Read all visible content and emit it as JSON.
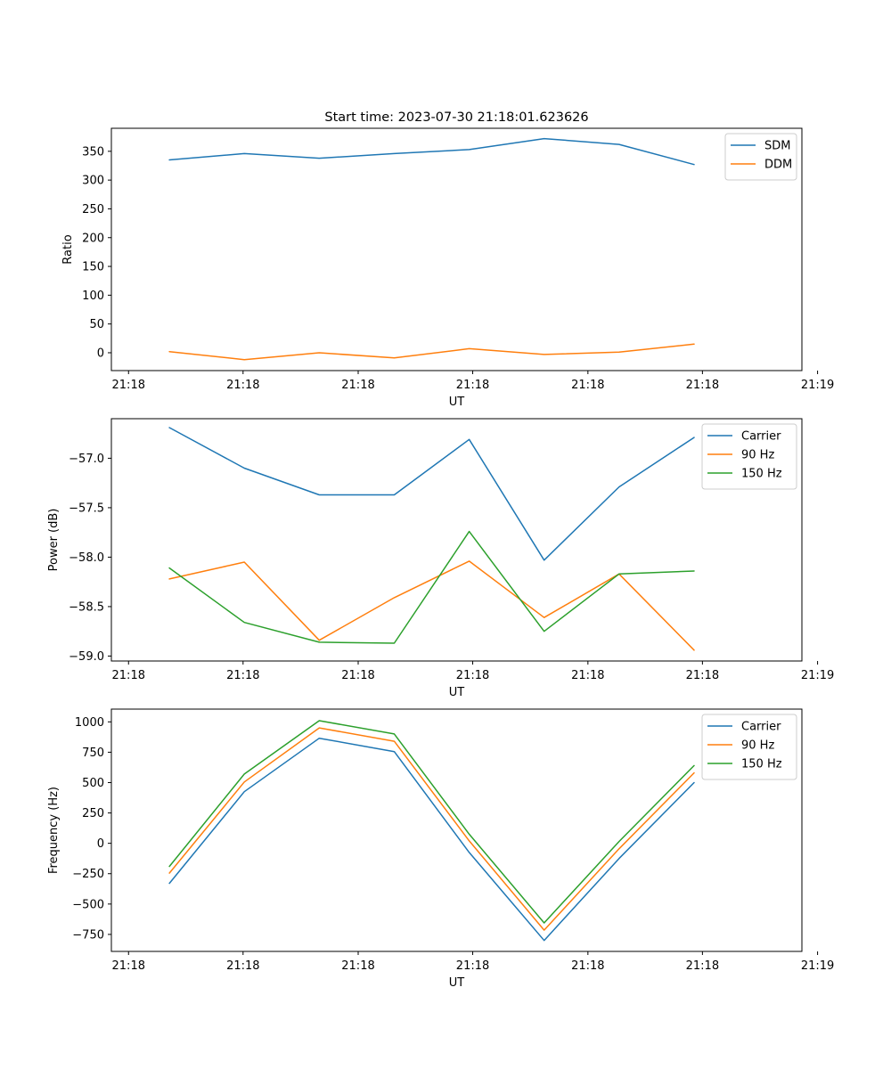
{
  "figure_title": "Start time: 2023-07-30 21:18:01.623626",
  "colors": {
    "blue": "#1f77b4",
    "orange": "#ff7f0e",
    "green": "#2ca02c"
  },
  "chart_data": [
    {
      "type": "line",
      "title": "Start time: 2023-07-30 21:18:01.623626",
      "xlabel": "UT",
      "ylabel": "Ratio",
      "x": [
        1,
        2,
        3,
        4,
        5,
        6,
        7,
        8
      ],
      "xlim": [
        0.226,
        9.439
      ],
      "xticks": [
        0.455,
        1.983,
        3.519,
        5.047,
        6.584,
        8.112,
        9.648
      ],
      "xtick_labels": [
        "21:18",
        "21:18",
        "21:18",
        "21:18",
        "21:18",
        "21:18",
        "21:19"
      ],
      "ylim": [
        -31,
        390
      ],
      "yticks": [
        0,
        50,
        100,
        150,
        200,
        250,
        300,
        350
      ],
      "ytick_labels": [
        "0",
        "50",
        "100",
        "150",
        "200",
        "250",
        "300",
        "350"
      ],
      "legend_position": "top-right",
      "series": [
        {
          "name": "SDM",
          "color": "#1f77b4",
          "values": [
            335,
            346,
            338,
            346,
            353,
            372,
            362,
            327
          ]
        },
        {
          "name": "DDM",
          "color": "#ff7f0e",
          "values": [
            2,
            -12,
            0,
            -9,
            7,
            -3,
            1,
            15
          ]
        }
      ]
    },
    {
      "type": "line",
      "title": "",
      "xlabel": "UT",
      "ylabel": "Power (dB)",
      "x": [
        1,
        2,
        3,
        4,
        5,
        6,
        7,
        8
      ],
      "xlim": [
        0.226,
        9.439
      ],
      "xticks": [
        0.455,
        1.983,
        3.519,
        5.047,
        6.584,
        8.112,
        9.648
      ],
      "xtick_labels": [
        "21:18",
        "21:18",
        "21:18",
        "21:18",
        "21:18",
        "21:18",
        "21:19"
      ],
      "ylim": [
        -59.05,
        -56.6
      ],
      "yticks": [
        -59.0,
        -58.5,
        -58.0,
        -57.5,
        -57.0
      ],
      "ytick_labels": [
        "−59.0",
        "−58.5",
        "−58.0",
        "−57.5",
        "−57.0"
      ],
      "legend_position": "top-right",
      "series": [
        {
          "name": "Carrier",
          "color": "#1f77b4",
          "values": [
            -56.69,
            -57.1,
            -57.37,
            -57.37,
            -56.81,
            -58.03,
            -57.29,
            -56.79
          ]
        },
        {
          "name": "90 Hz",
          "color": "#ff7f0e",
          "values": [
            -58.22,
            -58.05,
            -58.84,
            -58.41,
            -58.04,
            -58.61,
            -58.17,
            -58.94
          ]
        },
        {
          "name": "150 Hz",
          "color": "#2ca02c",
          "values": [
            -58.11,
            -58.66,
            -58.86,
            -58.87,
            -57.74,
            -58.75,
            -58.17,
            -58.14
          ]
        }
      ]
    },
    {
      "type": "line",
      "title": "",
      "xlabel": "UT",
      "ylabel": "Frequency (Hz)",
      "x": [
        1,
        2,
        3,
        4,
        5,
        6,
        7,
        8
      ],
      "xlim": [
        0.226,
        9.439
      ],
      "xticks": [
        0.455,
        1.983,
        3.519,
        5.047,
        6.584,
        8.112,
        9.648
      ],
      "xtick_labels": [
        "21:18",
        "21:18",
        "21:18",
        "21:18",
        "21:18",
        "21:18",
        "21:19"
      ],
      "ylim": [
        -890,
        1105
      ],
      "yticks": [
        -750,
        -500,
        -250,
        0,
        250,
        500,
        750,
        1000
      ],
      "ytick_labels": [
        "−750",
        "−500",
        "−250",
        "0",
        "250",
        "500",
        "750",
        "1000"
      ],
      "legend_position": "top-right",
      "series": [
        {
          "name": "Carrier",
          "color": "#1f77b4",
          "values": [
            -330,
            425,
            865,
            755,
            -75,
            -800,
            -125,
            500
          ]
        },
        {
          "name": "90 Hz",
          "color": "#ff7f0e",
          "values": [
            -245,
            505,
            950,
            840,
            20,
            -715,
            -45,
            580
          ]
        },
        {
          "name": "150 Hz",
          "color": "#2ca02c",
          "values": [
            -190,
            570,
            1010,
            900,
            75,
            -655,
            15,
            640
          ]
        }
      ]
    }
  ]
}
